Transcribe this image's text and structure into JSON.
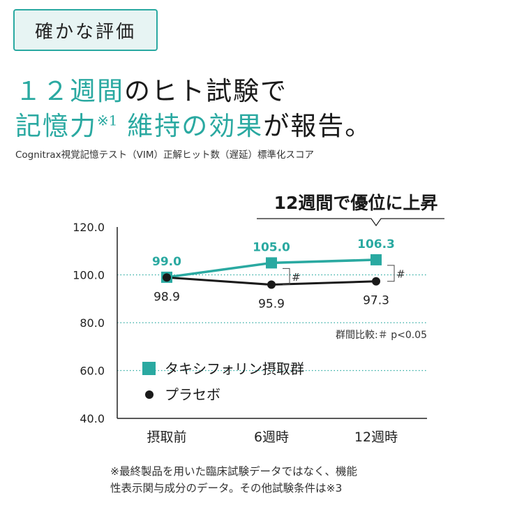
{
  "badge": "確かな評価",
  "headline": {
    "line1": [
      {
        "text": "１２週間",
        "color": "teal"
      },
      {
        "text": "のヒト試験で",
        "color": "dark"
      }
    ],
    "line2": [
      {
        "text": "記憶力",
        "color": "teal"
      },
      {
        "text": "※1",
        "color": "teal",
        "sup": true
      },
      {
        "text": " 維持の効果",
        "color": "teal"
      },
      {
        "text": "が報告。",
        "color": "dark"
      }
    ]
  },
  "subtitle": "Cognitrax視覚記憶テスト（VIM）正解ヒット数（遅延）標準化スコア",
  "callout": "12週間で優位に上昇",
  "significance_note": "群間比較:＃ p<0.05",
  "footnote": [
    "※最終製品を用いた臨床試験データではなく、機能",
    "性表示関与成分のデータ。その他試験条件は※3"
  ],
  "colors": {
    "accent": "#2aa9a1",
    "placebo": "#1a1a1a"
  },
  "chart_data": {
    "type": "line",
    "categories": [
      "摂取前",
      "6週時",
      "12週時"
    ],
    "ylim": [
      40,
      120
    ],
    "yticks": [
      "120.0",
      "100.0",
      "80.0",
      "60.0",
      "40.0"
    ],
    "ytick_values": [
      120,
      100,
      80,
      60,
      40
    ],
    "series": [
      {
        "name": "タキシフォリン摂取群",
        "values": [
          99.0,
          105.0,
          106.3
        ],
        "labels": [
          "99.0",
          "105.0",
          "106.3"
        ],
        "marker": "square",
        "color": "#2aa9a1"
      },
      {
        "name": "プラセボ",
        "values": [
          98.9,
          95.9,
          97.3
        ],
        "labels": [
          "98.9",
          "95.9",
          "97.3"
        ],
        "marker": "circle",
        "color": "#1a1a1a"
      }
    ],
    "significance_marks": [
      {
        "category": "6週時",
        "mark": "#"
      },
      {
        "category": "12週時",
        "mark": "#"
      }
    ],
    "legend_position": "bottom-left",
    "dotted_gridlines": [
      100,
      80,
      60
    ]
  }
}
